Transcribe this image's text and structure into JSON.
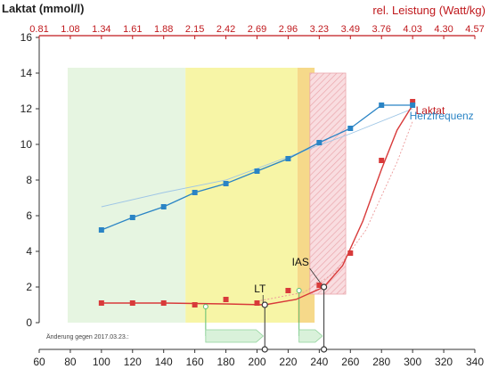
{
  "chart_data": {
    "type": "line",
    "ylabel": "Laktat (mmol/l)",
    "top_axis_label": "rel. Leistung (Watt/kg)",
    "ylim": [
      0,
      16
    ],
    "xlim": [
      60,
      340
    ],
    "y_ticks": [
      "0",
      "2",
      "4",
      "6",
      "8",
      "10",
      "12",
      "14",
      "16"
    ],
    "x_ticks": [
      "60",
      "80",
      "100",
      "120",
      "140",
      "160",
      "180",
      "200",
      "220",
      "240",
      "260",
      "280",
      "300",
      "320",
      "340"
    ],
    "top_ticks": [
      "0.81",
      "1.08",
      "1.34",
      "1.61",
      "1.88",
      "2.15",
      "2.42",
      "2.69",
      "2.96",
      "3.23",
      "3.49",
      "3.76",
      "4.03",
      "4.30",
      "4.57"
    ],
    "grid": false,
    "series": [
      {
        "name": "Laktat",
        "color": "#d83a3a",
        "x": [
          100,
          120,
          140,
          160,
          180,
          200,
          220,
          240,
          260,
          280,
          300
        ],
        "y": [
          1.1,
          1.1,
          1.1,
          1.0,
          1.3,
          1.1,
          1.8,
          2.1,
          3.9,
          9.1,
          12.4
        ]
      },
      {
        "name": "Herzfrequenz",
        "color": "#2a84c5",
        "x": [
          100,
          120,
          140,
          160,
          180,
          200,
          220,
          240,
          260,
          280,
          300
        ],
        "y": [
          5.2,
          5.9,
          6.5,
          7.3,
          7.8,
          8.5,
          9.2,
          10.1,
          10.9,
          12.2,
          12.2
        ]
      }
    ],
    "thresholds": [
      {
        "label": "LT",
        "x": 205,
        "y": 1.0
      },
      {
        "label": "IAS",
        "x": 243,
        "y": 2.0
      }
    ],
    "zones": [
      {
        "from": 80,
        "to": 154,
        "color": "#e6f5e1"
      },
      {
        "from": 154,
        "to": 226,
        "color": "#f7f5a6"
      },
      {
        "from": 226,
        "to": 237,
        "color": "#f6d98a"
      },
      {
        "from": 234,
        "to": 257,
        "color": "#f4c4c6"
      }
    ],
    "note": "Änderung gegen 2017.03.23.:"
  }
}
